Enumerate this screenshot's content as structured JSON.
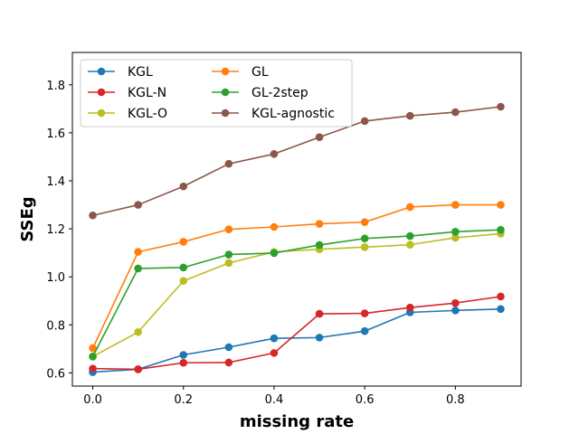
{
  "chart_data": {
    "type": "line",
    "title": "",
    "xlabel": "missing rate",
    "ylabel": "SSEg",
    "xlim": [
      -0.045,
      0.945
    ],
    "ylim": [
      0.545,
      1.935
    ],
    "xticks": [
      0.0,
      0.2,
      0.4,
      0.6,
      0.8
    ],
    "xtick_labels": [
      "0.0",
      "0.2",
      "0.4",
      "0.6",
      "0.8"
    ],
    "yticks": [
      0.6,
      0.8,
      1.0,
      1.2,
      1.4,
      1.6,
      1.8
    ],
    "ytick_labels": [
      "0.6",
      "0.8",
      "1.0",
      "1.2",
      "1.4",
      "1.6",
      "1.8"
    ],
    "legend_position": "top-left",
    "x": [
      0.0,
      0.1,
      0.2,
      0.3,
      0.4,
      0.5,
      0.6,
      0.7,
      0.8,
      0.9
    ],
    "series": [
      {
        "name": "KGL",
        "color": "#1f77b4",
        "values": [
          0.603,
          0.615,
          0.675,
          0.707,
          0.744,
          0.747,
          0.774,
          0.852,
          0.86,
          0.866
        ]
      },
      {
        "name": "KGL-N",
        "color": "#d62728",
        "values": [
          0.618,
          0.615,
          0.642,
          0.643,
          0.683,
          0.846,
          0.848,
          0.872,
          0.891,
          0.918
        ]
      },
      {
        "name": "KGL-O",
        "color": "#bcbd22",
        "values": [
          0.668,
          0.77,
          0.983,
          1.058,
          1.104,
          1.115,
          1.124,
          1.134,
          1.163,
          1.18
        ]
      },
      {
        "name": "GL",
        "color": "#ff7f0e",
        "values": [
          0.703,
          1.104,
          1.146,
          1.198,
          1.208,
          1.221,
          1.228,
          1.291,
          1.3,
          1.3
        ]
      },
      {
        "name": "GL-2step",
        "color": "#2ca02c",
        "values": [
          0.668,
          1.035,
          1.039,
          1.093,
          1.099,
          1.133,
          1.16,
          1.17,
          1.188,
          1.196
        ]
      },
      {
        "name": "KGL-agnostic",
        "color": "#8c564b",
        "values": [
          1.256,
          1.3,
          1.377,
          1.471,
          1.512,
          1.582,
          1.649,
          1.671,
          1.686,
          1.709
        ]
      }
    ]
  }
}
